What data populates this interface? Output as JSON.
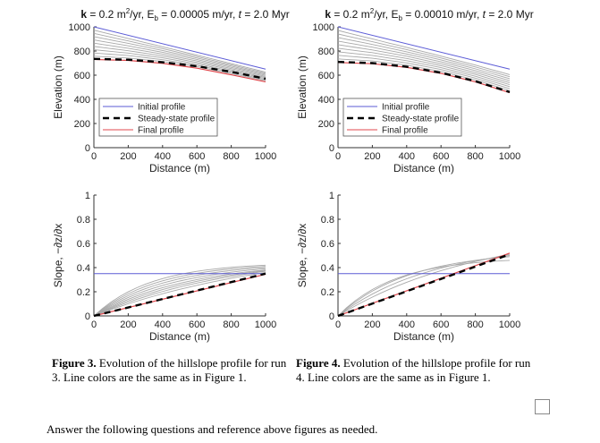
{
  "chart_data": [
    {
      "type": "line",
      "title": {
        "k": "k",
        "eq": " = 0.2 m",
        "sup": "2",
        "mid": "/yr, E",
        "sub": "b",
        "rest": " = 0.00005 m/yr, ",
        "t": "t",
        "end": " = 2.0 Myr"
      },
      "xlabel": "Distance (m)",
      "ylabel": "Elevation (m)",
      "xlim": [
        0,
        1000
      ],
      "ylim": [
        0,
        1000
      ],
      "xticks": [
        "0",
        "200",
        "400",
        "600",
        "800",
        "1000"
      ],
      "yticks": [
        "0",
        "200",
        "400",
        "600",
        "800",
        "1000"
      ],
      "legend": [
        "Initial profile",
        "Steady-state profile",
        "Final profile"
      ],
      "series": [
        {
          "name": "Initial profile",
          "x": [
            0,
            1000
          ],
          "y": [
            1000,
            650
          ]
        },
        {
          "name": "Steady-state profile",
          "x": [
            0,
            200,
            400,
            600,
            800,
            1000
          ],
          "y": [
            735,
            728,
            707,
            674,
            628,
            570
          ]
        },
        {
          "name": "Final profile",
          "x": [
            0,
            200,
            400,
            600,
            800,
            1000
          ],
          "y": [
            730,
            722,
            698,
            658,
            603,
            545
          ]
        }
      ],
      "intermediate_start": [
        965,
        930,
        895,
        860,
        830,
        800,
        775,
        755,
        742
      ]
    },
    {
      "type": "line",
      "title": {
        "k": "k",
        "eq": " = 0.2 m",
        "sup": "2",
        "mid": "/yr, E",
        "sub": "b",
        "rest": " = 0.00010 m/yr, ",
        "t": "t",
        "end": " = 2.0 Myr"
      },
      "xlabel": "Distance (m)",
      "ylabel": "Elevation (m)",
      "xlim": [
        0,
        1000
      ],
      "ylim": [
        0,
        1000
      ],
      "xticks": [
        "0",
        "200",
        "400",
        "600",
        "800",
        "1000"
      ],
      "yticks": [
        "0",
        "200",
        "400",
        "600",
        "800",
        "1000"
      ],
      "legend": [
        "Initial profile",
        "Steady-state profile",
        "Final profile"
      ],
      "series": [
        {
          "name": "Initial profile",
          "x": [
            0,
            1000
          ],
          "y": [
            1000,
            650
          ]
        },
        {
          "name": "Steady-state profile",
          "x": [
            0,
            200,
            400,
            600,
            800,
            1000
          ],
          "y": [
            710,
            700,
            670,
            620,
            550,
            460
          ]
        },
        {
          "name": "Final profile",
          "x": [
            0,
            200,
            400,
            600,
            800,
            1000
          ],
          "y": [
            705,
            695,
            665,
            615,
            545,
            455
          ]
        }
      ],
      "intermediate_start": [
        960,
        920,
        885,
        850,
        815,
        785,
        760,
        740,
        725
      ]
    },
    {
      "type": "line",
      "xlabel": "Distance (m)",
      "ylabel": "Slope, −∂z/∂x",
      "xlim": [
        0,
        1000
      ],
      "ylim": [
        0,
        1
      ],
      "xticks": [
        "0",
        "200",
        "400",
        "600",
        "800",
        "1000"
      ],
      "yticks": [
        "0",
        "0.2",
        "0.4",
        "0.6",
        "0.8",
        "1"
      ],
      "series": [
        {
          "name": "Initial profile",
          "x": [
            0,
            1000
          ],
          "y": [
            0.35,
            0.35
          ]
        },
        {
          "name": "Steady-state profile",
          "x": [
            0,
            1000
          ],
          "y": [
            0,
            0.35
          ]
        },
        {
          "name": "Final profile",
          "x": [
            0,
            1000
          ],
          "y": [
            0,
            0.345
          ]
        }
      ],
      "intermediate_end": [
        0.42,
        0.41,
        0.4,
        0.39,
        0.38,
        0.375,
        0.37,
        0.36
      ]
    },
    {
      "type": "line",
      "xlabel": "Distance (m)",
      "ylabel": "Slope, −∂z/∂x",
      "xlim": [
        0,
        1000
      ],
      "ylim": [
        0,
        1
      ],
      "xticks": [
        "0",
        "200",
        "400",
        "600",
        "800",
        "1000"
      ],
      "yticks": [
        "0",
        "0.2",
        "0.4",
        "0.6",
        "0.8",
        "1"
      ],
      "series": [
        {
          "name": "Initial profile",
          "x": [
            0,
            1000
          ],
          "y": [
            0.35,
            0.35
          ]
        },
        {
          "name": "Steady-state profile",
          "x": [
            0,
            1000
          ],
          "y": [
            0,
            0.51
          ]
        },
        {
          "name": "Final profile",
          "x": [
            0,
            1000
          ],
          "y": [
            0,
            0.52
          ]
        }
      ],
      "intermediate_end": [
        0.46,
        0.49,
        0.5,
        0.51
      ]
    }
  ],
  "colors": {
    "initial": "#5b5bd6",
    "steady": "#000000",
    "final": "#e0474c",
    "intermediate": "#a8a8a8"
  },
  "captions": {
    "fig3": {
      "label": "Figure 3.",
      "text": " Evolution of the hillslope profile for run 3. Line colors are the same as in Figure 1."
    },
    "fig4": {
      "label": "Figure 4.",
      "text": " Evolution of the hillslope profile for run 4. Line colors are the same as in Figure 1."
    }
  },
  "question": "Answer the following questions and reference above figures as needed."
}
